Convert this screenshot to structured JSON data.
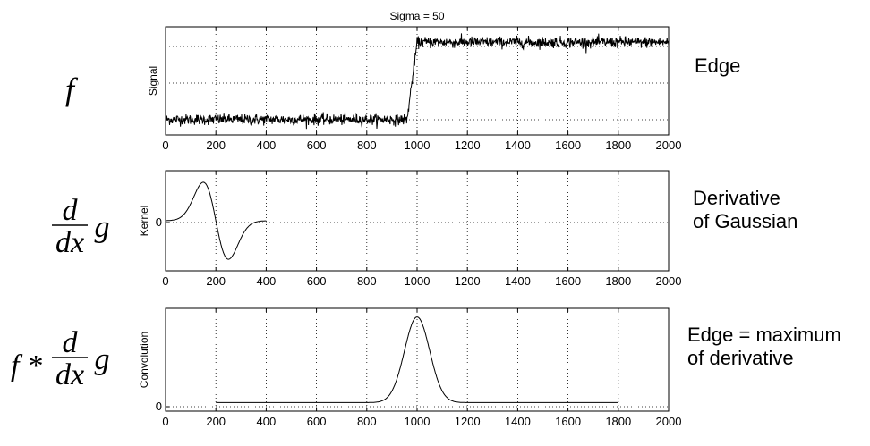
{
  "figure_title": "Sigma = 50",
  "formulas": {
    "f": "f",
    "d": "d",
    "dx": "dx",
    "g": "g",
    "star": "f *"
  },
  "annotations": {
    "edge": "Edge",
    "derivative_line1": "Derivative",
    "derivative_line2": "of Gaussian",
    "maximum_line1": "Edge = maximum",
    "maximum_line2": "of derivative"
  },
  "chart_data": [
    {
      "type": "line",
      "title": "Sigma = 50",
      "ylabel": "Signal",
      "xlim": [
        0,
        2000
      ],
      "xticks": [
        0,
        200,
        400,
        600,
        800,
        1000,
        1200,
        1400,
        1600,
        1800,
        2000
      ],
      "ylim": [
        -0.2,
        1.2
      ],
      "yticks": [],
      "grid": true,
      "series": [
        {
          "shape": "noisy step",
          "x": [
            0,
            960,
            1000,
            2000
          ],
          "y": [
            0,
            0,
            1,
            1
          ],
          "noise": 0.05
        }
      ]
    },
    {
      "type": "line",
      "ylabel": "Kernel",
      "xlim": [
        0,
        2000
      ],
      "xticks": [
        0,
        200,
        400,
        600,
        800,
        1000,
        1200,
        1400,
        1600,
        1800,
        2000
      ],
      "ylim": [
        -1.3,
        1.3
      ],
      "yticks": [
        0
      ],
      "grid": true,
      "series": [
        {
          "shape": "derivative of Gaussian",
          "x": [
            0,
            50,
            100,
            150,
            200,
            250,
            300,
            350,
            400
          ],
          "y": [
            0,
            0.09,
            0.55,
            1.0,
            0,
            -1.0,
            -0.55,
            -0.09,
            0
          ]
        }
      ]
    },
    {
      "type": "line",
      "ylabel": "Convolution",
      "xlim": [
        0,
        2000
      ],
      "xticks": [
        0,
        200,
        400,
        600,
        800,
        1000,
        1200,
        1400,
        1600,
        1800,
        2000
      ],
      "ylim": [
        -0.1,
        1.1
      ],
      "yticks": [
        0
      ],
      "grid": true,
      "series": [
        {
          "shape": "gaussian peak",
          "x": [
            200,
            800,
            850,
            900,
            950,
            1000,
            1050,
            1100,
            1150,
            1200,
            1800
          ],
          "y": [
            0,
            0.01,
            0.05,
            0.2,
            0.62,
            1.0,
            0.62,
            0.2,
            0.05,
            0.01,
            0
          ]
        }
      ]
    }
  ]
}
